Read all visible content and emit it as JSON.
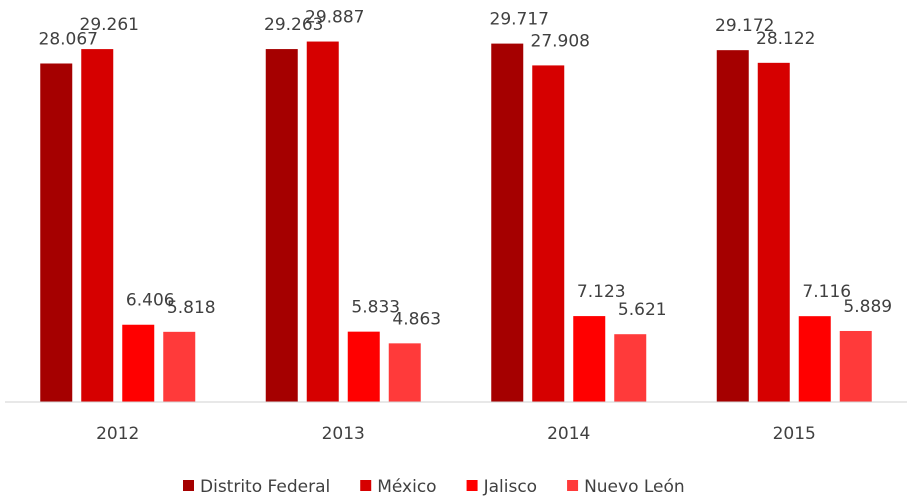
{
  "chart_data": {
    "type": "bar",
    "categories": [
      "2012",
      "2013",
      "2014",
      "2015"
    ],
    "series": [
      {
        "name": "Distrito Federal",
        "color": "#a50000",
        "values": [
          28.067,
          29.263,
          29.717,
          29.172
        ]
      },
      {
        "name": "México",
        "color": "#d60000",
        "values": [
          29.261,
          29.887,
          27.908,
          28.122
        ]
      },
      {
        "name": "Jalisco",
        "color": "#ff0000",
        "values": [
          6.406,
          5.833,
          7.123,
          7.116
        ]
      },
      {
        "name": "Nuevo León",
        "color": "#ff3a3a",
        "values": [
          5.818,
          4.863,
          5.621,
          5.889
        ]
      }
    ],
    "ylim": [
      0,
      33
    ],
    "legend": "bottom"
  }
}
